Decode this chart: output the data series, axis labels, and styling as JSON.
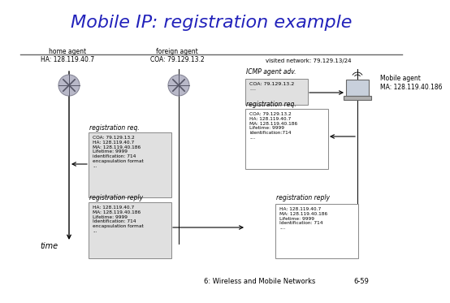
{
  "title": "Mobile IP: registration example",
  "title_color": "#2222bb",
  "title_fontsize": 16,
  "bg_color": "#ffffff",
  "footer": "6: Wireless and Mobile Networks",
  "footer_slide": "6-59",
  "home_agent_label": "home agent\nHA: 128.119.40.7",
  "foreign_agent_label": "foreign agent\nCOA: 79.129.13.2",
  "icmp_label": "ICMP agent adv.",
  "visited_label": "visited network: 79.129.13/24",
  "mobile_agent_label": "Mobile agent\nMA: 128.119.40.186",
  "time_label": "time",
  "icmp_box": "COA: 79.129.13.2\n....",
  "reg_req_label_right": "registration req.",
  "reg_req_label_left": "registration req.",
  "reg_req_box_left": "COA: 79.129.13.2\nHA: 128.119.40.7\nMA: 128.119.40.186\nLifetime: 9999\nidentification: 714\nencapsulation format\n...",
  "reg_req_box_right": "COA: 79.129.13.2\nHA: 128.119.40.7\nMA: 128.119.40.186\nLifetime: 9999\nidentification:714\n....",
  "reg_reply_label_left": "registration reply",
  "reg_reply_label_right": "registration reply",
  "reg_reply_box_left": "HA: 128.119.40.7\nMA: 128.119.40.186\nLifetime: 9999\nIdentification: 714\nencapsulation format\n...",
  "reg_reply_box_right": "HA: 128.119.40.7\nMA: 128.119.40.186\nLifetime: 9999\nIdentification: 714\n...."
}
